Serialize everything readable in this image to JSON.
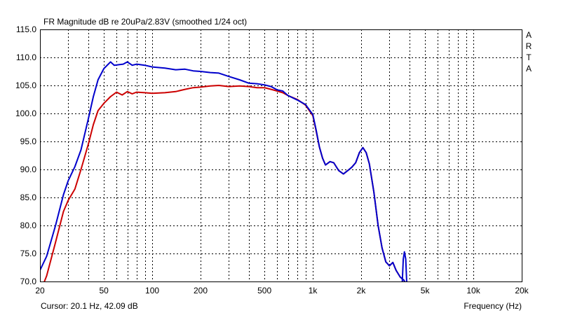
{
  "chart_data": {
    "type": "line",
    "title": "FR Magnitude dB re 20uPa/2.83V (smoothed 1/24 oct)",
    "xlabel": "Frequency (Hz)",
    "ylabel": "",
    "xscale": "log",
    "xlim": [
      20,
      20000
    ],
    "ylim": [
      70,
      115
    ],
    "grid": true,
    "x_tick_labels": [
      "20",
      "50",
      "100",
      "200",
      "500",
      "1k",
      "2k",
      "5k",
      "10k",
      "20k"
    ],
    "x_tick_values": [
      20,
      50,
      100,
      200,
      500,
      1000,
      2000,
      5000,
      10000,
      20000
    ],
    "x_minor_values": [
      30,
      40,
      60,
      70,
      80,
      90,
      300,
      400,
      600,
      700,
      800,
      900,
      3000,
      4000,
      6000,
      7000,
      8000,
      9000
    ],
    "y_tick_labels": [
      "115.0",
      "110.0",
      "105.0",
      "100.0",
      "95.0",
      "90.0",
      "85.0",
      "80.0",
      "75.0",
      "70.0"
    ],
    "y_tick_values": [
      115,
      110,
      105,
      100,
      95,
      90,
      85,
      80,
      75,
      70
    ],
    "series": [
      {
        "color": "#0000cc",
        "points": [
          [
            20,
            72.0
          ],
          [
            22,
            74.5
          ],
          [
            25,
            80.0
          ],
          [
            28,
            85.5
          ],
          [
            30,
            88.0
          ],
          [
            33,
            90.5
          ],
          [
            36,
            93.5
          ],
          [
            40,
            99.0
          ],
          [
            43,
            103.0
          ],
          [
            46,
            106.0
          ],
          [
            50,
            108.0
          ],
          [
            55,
            109.2
          ],
          [
            58,
            108.6
          ],
          [
            62,
            108.7
          ],
          [
            66,
            108.8
          ],
          [
            70,
            109.2
          ],
          [
            75,
            108.6
          ],
          [
            80,
            108.8
          ],
          [
            90,
            108.6
          ],
          [
            100,
            108.3
          ],
          [
            120,
            108.1
          ],
          [
            140,
            107.8
          ],
          [
            160,
            107.9
          ],
          [
            180,
            107.6
          ],
          [
            200,
            107.5
          ],
          [
            230,
            107.3
          ],
          [
            260,
            107.2
          ],
          [
            300,
            106.6
          ],
          [
            350,
            106.0
          ],
          [
            400,
            105.4
          ],
          [
            450,
            105.3
          ],
          [
            500,
            105.1
          ],
          [
            550,
            104.8
          ],
          [
            600,
            104.2
          ],
          [
            650,
            104.0
          ],
          [
            700,
            103.2
          ],
          [
            800,
            102.4
          ],
          [
            900,
            101.6
          ],
          [
            1000,
            99.8
          ],
          [
            1050,
            97.0
          ],
          [
            1100,
            94.0
          ],
          [
            1150,
            92.0
          ],
          [
            1200,
            90.8
          ],
          [
            1280,
            91.4
          ],
          [
            1350,
            91.2
          ],
          [
            1450,
            89.8
          ],
          [
            1550,
            89.2
          ],
          [
            1650,
            89.8
          ],
          [
            1750,
            90.4
          ],
          [
            1850,
            91.2
          ],
          [
            1950,
            93.0
          ],
          [
            2050,
            93.9
          ],
          [
            2150,
            93.0
          ],
          [
            2250,
            91.0
          ],
          [
            2400,
            86.0
          ],
          [
            2550,
            80.0
          ],
          [
            2700,
            76.0
          ],
          [
            2850,
            73.5
          ],
          [
            3000,
            72.8
          ],
          [
            3150,
            73.4
          ],
          [
            3300,
            72.0
          ],
          [
            3500,
            70.8
          ],
          [
            3700,
            70.2
          ],
          [
            3800,
            69.5
          ]
        ]
      },
      {
        "color": "#cc0000",
        "points": [
          [
            20,
            68.0
          ],
          [
            22,
            71.0
          ],
          [
            25,
            77.0
          ],
          [
            28,
            82.5
          ],
          [
            30,
            84.5
          ],
          [
            33,
            86.5
          ],
          [
            36,
            90.0
          ],
          [
            40,
            94.5
          ],
          [
            43,
            98.0
          ],
          [
            46,
            100.5
          ],
          [
            50,
            101.8
          ],
          [
            55,
            103.0
          ],
          [
            60,
            103.8
          ],
          [
            65,
            103.3
          ],
          [
            70,
            103.9
          ],
          [
            75,
            103.5
          ],
          [
            80,
            103.8
          ],
          [
            90,
            103.7
          ],
          [
            100,
            103.6
          ],
          [
            120,
            103.7
          ],
          [
            140,
            103.9
          ],
          [
            160,
            104.3
          ],
          [
            180,
            104.6
          ],
          [
            200,
            104.7
          ],
          [
            230,
            104.9
          ],
          [
            260,
            105.0
          ],
          [
            300,
            104.8
          ],
          [
            350,
            104.9
          ],
          [
            400,
            104.8
          ],
          [
            450,
            104.6
          ],
          [
            500,
            104.6
          ],
          [
            550,
            104.3
          ],
          [
            600,
            104.0
          ],
          [
            650,
            103.7
          ],
          [
            700,
            103.2
          ],
          [
            800,
            102.5
          ],
          [
            900,
            101.5
          ],
          [
            1000,
            99.6
          ],
          [
            1050,
            96.8
          ],
          [
            1100,
            94.0
          ],
          [
            1150,
            92.0
          ],
          [
            1200,
            90.8
          ],
          [
            1280,
            91.4
          ],
          [
            1350,
            91.2
          ],
          [
            1450,
            89.8
          ],
          [
            1550,
            89.2
          ],
          [
            1650,
            89.8
          ],
          [
            1750,
            90.4
          ],
          [
            1850,
            91.2
          ],
          [
            1950,
            93.0
          ],
          [
            2050,
            93.9
          ],
          [
            2150,
            93.0
          ],
          [
            2250,
            91.0
          ],
          [
            2400,
            86.0
          ],
          [
            2550,
            80.0
          ],
          [
            2700,
            76.0
          ],
          [
            2850,
            73.5
          ],
          [
            3000,
            72.8
          ],
          [
            3150,
            73.4
          ],
          [
            3300,
            72.0
          ],
          [
            3500,
            70.8
          ],
          [
            3700,
            70.2
          ],
          [
            3800,
            69.5
          ]
        ]
      }
    ],
    "extra_segments": [
      {
        "color": "#0000cc",
        "points": [
          [
            3600,
            69.5
          ],
          [
            3660,
            74.0
          ],
          [
            3720,
            75.3
          ],
          [
            3790,
            74.0
          ],
          [
            3850,
            69.5
          ]
        ]
      }
    ]
  },
  "footer": {
    "cursor_text": "Cursor: 20.1 Hz, 42.09 dB"
  },
  "brand": {
    "text": "ARTA"
  },
  "colors": {
    "frame": "#000000",
    "grid": "#000000",
    "background": "#ffffff"
  }
}
